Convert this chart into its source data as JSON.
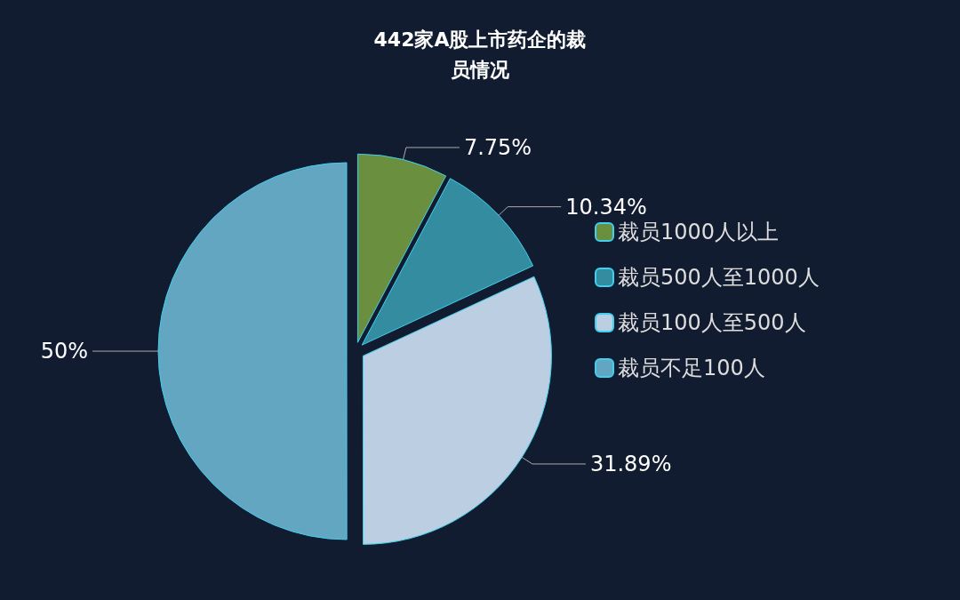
{
  "chart_data": {
    "type": "pie",
    "title": "442家A股上市药企的裁员情况",
    "categories": [
      "裁员1000人以上",
      "裁员500人至1000人",
      "裁员100人至500人",
      "裁员不足100人"
    ],
    "values": [
      7.75,
      10.34,
      31.89,
      50
    ],
    "value_labels": [
      "7.75%",
      "10.34%",
      "31.89%",
      "50%"
    ],
    "colors": [
      "#6a8f3f",
      "#338c9f",
      "#bccfe2",
      "#62a6c2"
    ],
    "legend": "right"
  }
}
